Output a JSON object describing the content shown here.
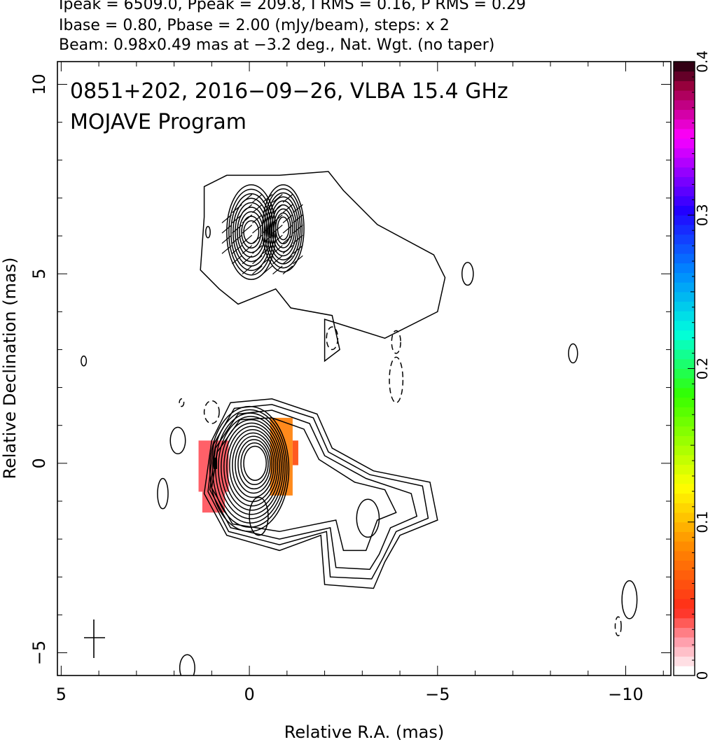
{
  "header": {
    "line1": "Ipeak = 6509.0, Ppeak = 209.8, I RMS = 0.16, P RMS = 0.29",
    "line2": "Ibase = 0.80, Pbase = 2.00 (mJy/beam), steps: x 2",
    "line3": "Beam: 0.98x0.49 mas at −3.2 deg., Nat. Wgt. (no taper)"
  },
  "chart_data": {
    "type": "heatmap",
    "title": "0851+202, 2016−09−26, VLBA 15.4 GHz",
    "subtitle": "MOJAVE Program",
    "xlabel": "Relative R.A. (mas)",
    "ylabel": "Relative Declination (mas)",
    "xlim": [
      5.1,
      -11.2
    ],
    "ylim": [
      -5.6,
      10.6
    ],
    "x_ticks": [
      5,
      0,
      -5,
      -10
    ],
    "x_tick_labels": [
      "5",
      "0",
      "−5",
      "−10"
    ],
    "y_ticks": [
      -5,
      0,
      5,
      10
    ],
    "y_tick_labels": [
      "−5",
      "0",
      "5",
      "10"
    ],
    "colorbar": {
      "range": [
        0,
        0.4
      ],
      "ticks": [
        0,
        0.1,
        0.2,
        0.3,
        0.4
      ],
      "tick_labels": [
        "0",
        "0.1",
        "0.2",
        "0.3",
        "0.4"
      ]
    },
    "intensity_contours": {
      "base_mjy_per_beam": 0.8,
      "step_factor": 2,
      "core": {
        "center": [
          0,
          0
        ],
        "levels": 13
      },
      "north_component": {
        "center": [
          0.3,
          6.1
        ],
        "levels": 9
      }
    },
    "fractional_polarization_pixels": [
      {
        "x": 0.0,
        "y": 0.0,
        "value": 0.04,
        "color": "#ff6068"
      },
      {
        "x": -0.85,
        "y": -0.15,
        "value": 0.09,
        "color": "#ff8a1c"
      },
      {
        "x": -1.1,
        "y": 0.25,
        "value": 0.08,
        "color": "#ff5a20"
      }
    ],
    "beam": {
      "major_mas": 0.98,
      "minor_mas": 0.49,
      "pa_deg": -3.2
    }
  }
}
